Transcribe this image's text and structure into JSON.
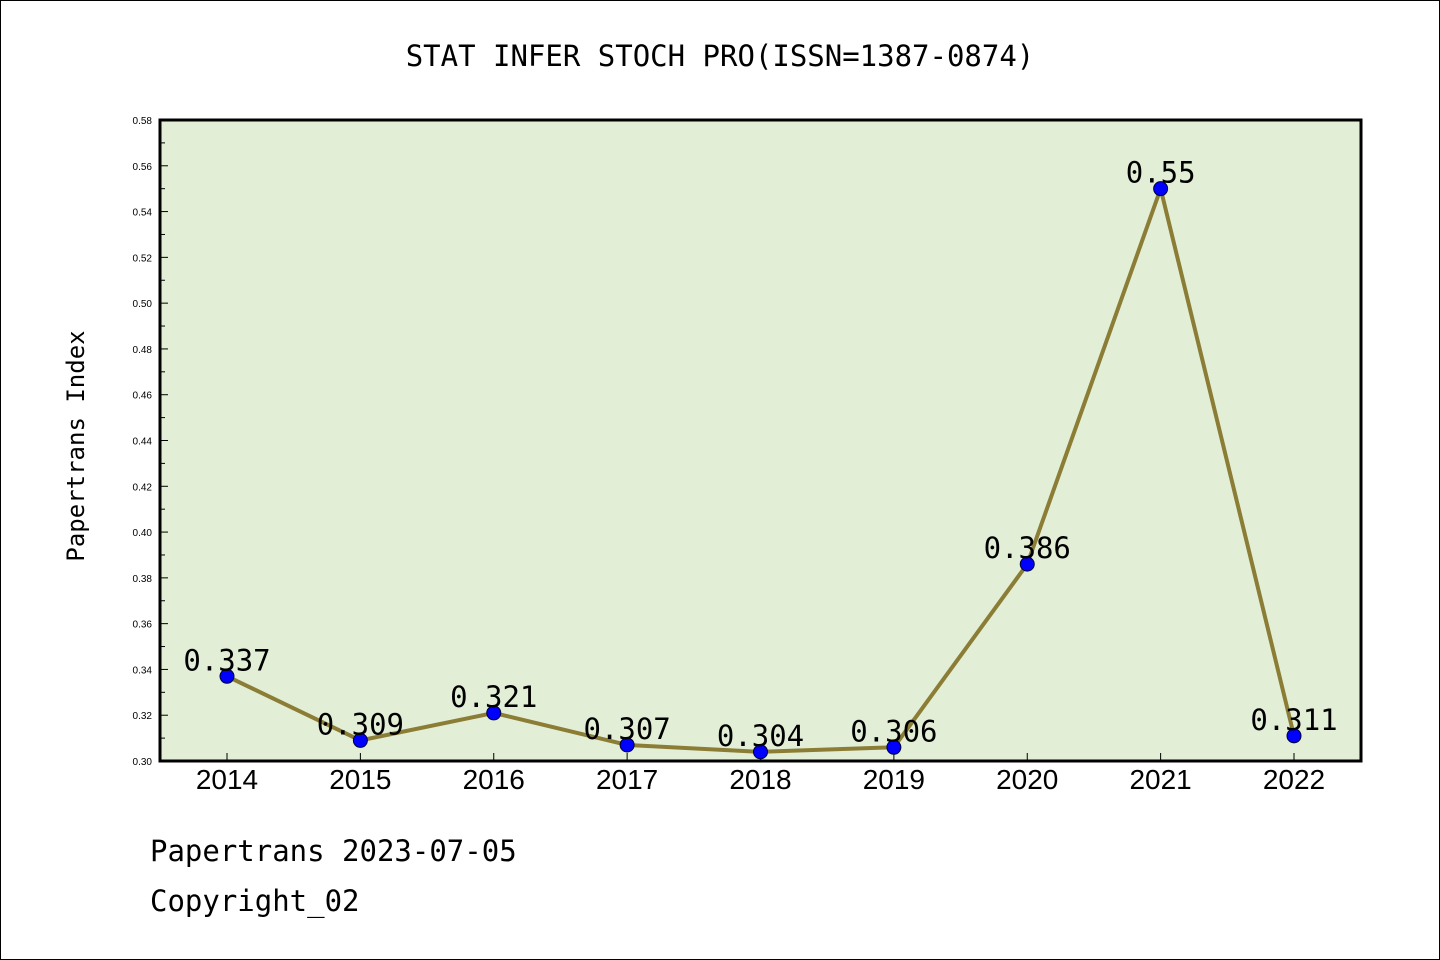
{
  "chart_data": {
    "type": "line",
    "title": "STAT INFER STOCH PRO(ISSN=1387-0874)",
    "xlabel": "",
    "ylabel": "Papertrans Index",
    "categories": [
      "2014",
      "2015",
      "2016",
      "2017",
      "2018",
      "2019",
      "2020",
      "2021",
      "2022"
    ],
    "series": [
      {
        "values": [
          0.337,
          0.309,
          0.321,
          0.307,
          0.304,
          0.306,
          0.386,
          0.55,
          0.311
        ],
        "data_labels": [
          "0.337",
          "0.309",
          "0.321",
          "0.307",
          "0.304",
          "0.306",
          "0.386",
          "0.55",
          "0.311"
        ]
      }
    ],
    "ylim": [
      0.3,
      0.58
    ],
    "y_ticks": [
      "0.30",
      "0.32",
      "0.34",
      "0.36",
      "0.38",
      "0.40",
      "0.42",
      "0.44",
      "0.46",
      "0.48",
      "0.50",
      "0.52",
      "0.54",
      "0.56",
      "0.58"
    ],
    "grid": false,
    "legend": "none",
    "colors": {
      "plot_background": "#e2efd6",
      "line": "#8b7d35",
      "marker": "#0000ff",
      "axis": "#000000"
    }
  },
  "footer": {
    "line1": "Papertrans 2023-07-05",
    "line2": "Copyright_02"
  }
}
